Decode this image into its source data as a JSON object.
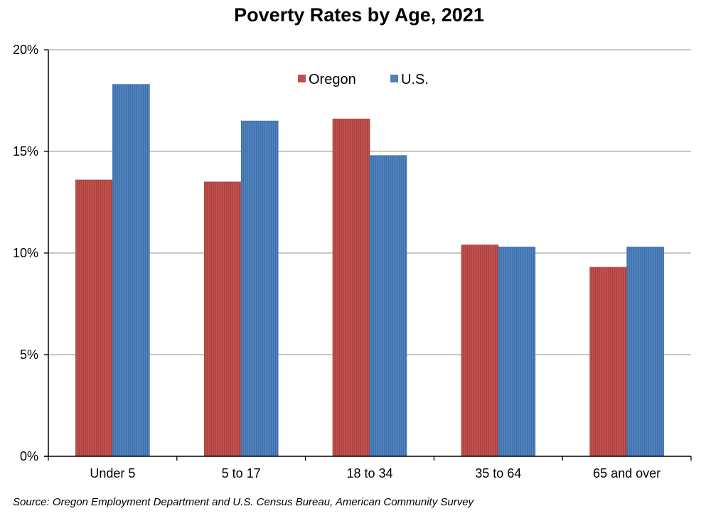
{
  "chart_data": {
    "type": "bar",
    "title": "Poverty Rates by Age, 2021",
    "categories": [
      "Under 5",
      "5 to 17",
      "18 to 34",
      "35 to 64",
      "65 and over"
    ],
    "series": [
      {
        "name": "Oregon",
        "color": "#C0504D",
        "values": [
          13.6,
          13.5,
          16.6,
          10.4,
          9.3
        ]
      },
      {
        "name": "U.S.",
        "color": "#4F81BD",
        "values": [
          18.3,
          16.5,
          14.8,
          10.3,
          10.3
        ]
      }
    ],
    "ylim": [
      0,
      20
    ],
    "yticks": [
      0,
      5,
      10,
      15,
      20
    ],
    "ytick_labels": [
      "0%",
      "5%",
      "10%",
      "15%",
      "20%"
    ],
    "grid": true,
    "legend_position": "top-center",
    "source": "Source: Oregon Employment Department and U.S. Census Bureau, American Community Survey"
  }
}
